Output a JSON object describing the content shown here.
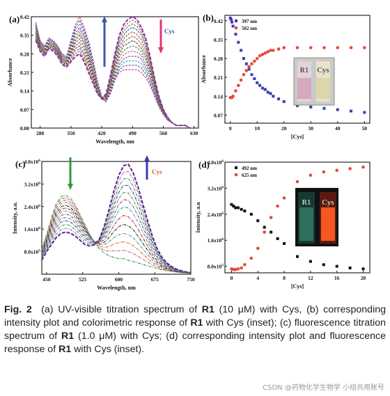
{
  "chart_data": [
    {
      "panel": "(a)",
      "type": "line",
      "xlabel": "Wavelength, nm",
      "ylabel": "Absorbance",
      "xlim": [
        260,
        640
      ],
      "ylim": [
        0,
        0.42
      ],
      "xticks": [
        280,
        350,
        420,
        490,
        560,
        630
      ],
      "yticks": [
        "0.00",
        "0.07",
        "0.14",
        "0.21",
        "0.28",
        "0.35",
        "0.42"
      ],
      "annotation": "Cys",
      "arrow_up_color": "#3a5ba8",
      "arrow_down_color": "#e8336d",
      "x": [
        270,
        280,
        290,
        300,
        310,
        320,
        330,
        340,
        350,
        360,
        370,
        380,
        390,
        400,
        410,
        420,
        430,
        440,
        450,
        460,
        470,
        480,
        490,
        500,
        510,
        520,
        530,
        540,
        550,
        560,
        570,
        580,
        590,
        600,
        610,
        620,
        630
      ],
      "series": [
        {
          "values": [
            0.4,
            0.33,
            0.31,
            0.34,
            0.33,
            0.31,
            0.28,
            0.27,
            0.33,
            0.39,
            0.42,
            0.38,
            0.33,
            0.26,
            0.18,
            0.12,
            0.1,
            0.13,
            0.18,
            0.21,
            0.22,
            0.22,
            0.22,
            0.22,
            0.21,
            0.19,
            0.16,
            0.12,
            0.08,
            0.05,
            0.03,
            0.02,
            0.01,
            0.01,
            0.01,
            0.0,
            0.0
          ]
        },
        {
          "values": [
            0.38,
            0.32,
            0.3,
            0.33,
            0.32,
            0.3,
            0.27,
            0.26,
            0.31,
            0.36,
            0.38,
            0.35,
            0.3,
            0.24,
            0.16,
            0.11,
            0.1,
            0.14,
            0.2,
            0.24,
            0.26,
            0.27,
            0.27,
            0.27,
            0.26,
            0.23,
            0.19,
            0.14,
            0.09,
            0.06,
            0.03,
            0.02,
            0.01,
            0.01,
            0.01,
            0.0,
            0.0
          ]
        },
        {
          "values": [
            0.36,
            0.31,
            0.29,
            0.32,
            0.31,
            0.29,
            0.26,
            0.25,
            0.29,
            0.33,
            0.35,
            0.32,
            0.27,
            0.21,
            0.15,
            0.11,
            0.11,
            0.16,
            0.23,
            0.28,
            0.31,
            0.32,
            0.33,
            0.32,
            0.3,
            0.27,
            0.22,
            0.16,
            0.1,
            0.06,
            0.04,
            0.02,
            0.01,
            0.01,
            0.01,
            0.0,
            0.0
          ]
        },
        {
          "values": [
            0.34,
            0.3,
            0.28,
            0.31,
            0.3,
            0.28,
            0.25,
            0.24,
            0.27,
            0.3,
            0.31,
            0.28,
            0.24,
            0.19,
            0.14,
            0.11,
            0.12,
            0.18,
            0.26,
            0.32,
            0.35,
            0.37,
            0.38,
            0.37,
            0.35,
            0.31,
            0.25,
            0.18,
            0.11,
            0.07,
            0.04,
            0.02,
            0.01,
            0.01,
            0.01,
            0.0,
            0.0
          ]
        },
        {
          "values": [
            0.33,
            0.29,
            0.27,
            0.3,
            0.29,
            0.27,
            0.24,
            0.23,
            0.25,
            0.27,
            0.28,
            0.25,
            0.21,
            0.17,
            0.13,
            0.11,
            0.13,
            0.2,
            0.28,
            0.35,
            0.39,
            0.41,
            0.42,
            0.41,
            0.38,
            0.34,
            0.27,
            0.19,
            0.12,
            0.07,
            0.04,
            0.02,
            0.01,
            0.01,
            0.01,
            0.0,
            0.0
          ]
        }
      ]
    },
    {
      "panel": "(b)",
      "type": "scatter",
      "xlabel": "[Cys]",
      "ylabel": "Absorbance",
      "xlim": [
        -2,
        52
      ],
      "ylim": [
        0.04,
        0.44
      ],
      "xticks": [
        0,
        10,
        20,
        30,
        40,
        50
      ],
      "yticks": [
        "0.07",
        "0.14",
        "0.21",
        "0.28",
        "0.35",
        "0.42"
      ],
      "legend_position": "top-left",
      "inset_labels": [
        "R1",
        "Cys"
      ],
      "series": [
        {
          "name": "397 nm",
          "color": "#3b3db3",
          "x": [
            0,
            0.3,
            0.6,
            1,
            2,
            3,
            4,
            5,
            6,
            7,
            8,
            9,
            10,
            11,
            12,
            13,
            14,
            15,
            16,
            18,
            20,
            25,
            30,
            35,
            40,
            45,
            50
          ],
          "values": [
            0.43,
            0.425,
            0.415,
            0.4,
            0.37,
            0.34,
            0.31,
            0.28,
            0.26,
            0.24,
            0.22,
            0.205,
            0.19,
            0.18,
            0.17,
            0.165,
            0.155,
            0.15,
            0.14,
            0.13,
            0.12,
            0.105,
            0.1,
            0.095,
            0.09,
            0.085,
            0.08
          ]
        },
        {
          "name": "502 nm",
          "color": "#e8483a",
          "x": [
            0,
            0.3,
            0.6,
            1,
            2,
            3,
            4,
            5,
            6,
            7,
            8,
            9,
            10,
            11,
            12,
            13,
            14,
            15,
            16,
            18,
            20,
            25,
            30,
            35,
            40,
            45,
            50
          ],
          "values": [
            0.135,
            0.135,
            0.135,
            0.14,
            0.16,
            0.18,
            0.2,
            0.22,
            0.235,
            0.25,
            0.26,
            0.27,
            0.28,
            0.29,
            0.295,
            0.3,
            0.305,
            0.31,
            0.31,
            0.315,
            0.32,
            0.32,
            0.32,
            0.32,
            0.32,
            0.32,
            0.32
          ]
        }
      ]
    },
    {
      "panel": "(c)",
      "type": "line",
      "xlabel": "Wavelength, nm",
      "ylabel": "Intensity, a.u.",
      "xlim": [
        440,
        750
      ],
      "ylim": [
        0,
        4.0
      ],
      "xticks": [
        450,
        525,
        600,
        675,
        750
      ],
      "yticks": [
        {
          "m": "8.0x10",
          "e": "5"
        },
        {
          "m": "1.6x10",
          "e": "6"
        },
        {
          "m": "2.4x10",
          "e": "6"
        },
        {
          "m": "3.2x10",
          "e": "6"
        },
        {
          "m": "4.0x10",
          "e": "6"
        }
      ],
      "annotation": "Cys",
      "arrow_down_color": "#2e9a3a",
      "arrow_up_color": "#3a3aa8",
      "x": [
        440,
        450,
        460,
        470,
        480,
        490,
        500,
        510,
        520,
        530,
        540,
        550,
        560,
        570,
        580,
        590,
        600,
        610,
        620,
        630,
        640,
        650,
        660,
        670,
        680,
        690,
        700,
        710,
        720,
        730,
        740,
        750
      ],
      "series": [
        {
          "values": [
            0.9,
            1.4,
            2.0,
            2.5,
            2.75,
            2.8,
            2.7,
            2.45,
            2.1,
            1.75,
            1.4,
            1.1,
            0.9,
            0.75,
            0.65,
            0.6,
            0.55,
            0.55,
            0.5,
            0.45,
            0.4,
            0.35,
            0.3,
            0.25,
            0.2,
            0.15,
            0.12,
            0.1,
            0.08,
            0.06,
            0.05,
            0.04
          ]
        },
        {
          "values": [
            0.8,
            1.25,
            1.8,
            2.25,
            2.5,
            2.55,
            2.45,
            2.25,
            1.95,
            1.65,
            1.35,
            1.15,
            1.05,
            1.05,
            1.15,
            1.3,
            1.4,
            1.45,
            1.4,
            1.3,
            1.1,
            0.9,
            0.7,
            0.5,
            0.35,
            0.25,
            0.18,
            0.12,
            0.08,
            0.06,
            0.05,
            0.04
          ]
        },
        {
          "values": [
            0.7,
            1.1,
            1.55,
            1.95,
            2.2,
            2.25,
            2.2,
            2.0,
            1.75,
            1.5,
            1.3,
            1.15,
            1.15,
            1.3,
            1.6,
            1.95,
            2.25,
            2.4,
            2.35,
            2.15,
            1.85,
            1.5,
            1.15,
            0.8,
            0.55,
            0.37,
            0.25,
            0.17,
            0.12,
            0.08,
            0.06,
            0.05
          ]
        },
        {
          "values": [
            0.6,
            0.95,
            1.3,
            1.65,
            1.85,
            1.9,
            1.85,
            1.7,
            1.5,
            1.3,
            1.15,
            1.1,
            1.2,
            1.5,
            1.95,
            2.45,
            2.9,
            3.15,
            3.15,
            2.9,
            2.5,
            2.05,
            1.55,
            1.1,
            0.75,
            0.5,
            0.33,
            0.22,
            0.15,
            0.1,
            0.07,
            0.05
          ]
        },
        {
          "values": [
            0.5,
            0.8,
            1.05,
            1.3,
            1.45,
            1.5,
            1.45,
            1.35,
            1.2,
            1.05,
            1.0,
            1.05,
            1.25,
            1.7,
            2.3,
            2.95,
            3.5,
            3.85,
            3.9,
            3.6,
            3.1,
            2.5,
            1.9,
            1.35,
            0.9,
            0.6,
            0.4,
            0.27,
            0.18,
            0.12,
            0.08,
            0.06
          ]
        }
      ]
    },
    {
      "panel": "(d)",
      "type": "scatter",
      "xlabel": "[Cys]",
      "ylabel": "Intensity, a.u",
      "xlim": [
        -1,
        21
      ],
      "ylim": [
        0.6,
        4.0
      ],
      "xticks": [
        0,
        4,
        8,
        12,
        16,
        20
      ],
      "yticks": [
        {
          "m": "8.0x10",
          "e": "5"
        },
        {
          "m": "1.6x10",
          "e": "6"
        },
        {
          "m": "2.4x10",
          "e": "6"
        },
        {
          "m": "3.2x10",
          "e": "6"
        },
        {
          "m": "4.0x10",
          "e": "6"
        }
      ],
      "legend_position": "top-left",
      "inset_labels": [
        "R1",
        "Cys"
      ],
      "series": [
        {
          "name": "492 nm",
          "color": "#111111",
          "x": [
            0,
            0.3,
            0.6,
            1,
            1.5,
            2,
            3,
            4,
            5,
            6,
            7,
            8,
            10,
            12,
            14,
            16,
            18,
            20
          ],
          "values": [
            2.7,
            2.65,
            2.6,
            2.6,
            2.55,
            2.5,
            2.4,
            2.2,
            2.0,
            1.85,
            1.65,
            1.5,
            1.1,
            0.95,
            0.85,
            0.8,
            0.75,
            0.72
          ]
        },
        {
          "name": "625 nm",
          "color": "#e8483a",
          "x": [
            0,
            0.3,
            0.6,
            1,
            1.5,
            2,
            3,
            4,
            5,
            6,
            7,
            8,
            10,
            12,
            14,
            16,
            18,
            20
          ],
          "values": [
            0.72,
            0.7,
            0.7,
            0.72,
            0.75,
            0.85,
            1.05,
            1.35,
            1.85,
            2.3,
            2.65,
            2.9,
            3.4,
            3.6,
            3.7,
            3.75,
            3.8,
            3.85
          ]
        }
      ]
    }
  ],
  "caption": {
    "label": "Fig. 2",
    "a_pre": "(a) UV-visible titration spectrum of ",
    "a_compound": "R1",
    "a_post": " (10 μM) with Cys, (b) corresponding intensity plot and colorimetric response of ",
    "b_compound": "R1",
    "b_post": " with Cys (inset); (c) fluorescence titration spectrum of ",
    "c_compound": "R1",
    "c_post": " (1.0 μM) with Cys; (d) corresponding intensity plot and fluorescence response of ",
    "d_compound": "R1",
    "d_post": " with Cys (inset)."
  },
  "watermark": "CSDN @药物化学生物学 小组共用账号"
}
